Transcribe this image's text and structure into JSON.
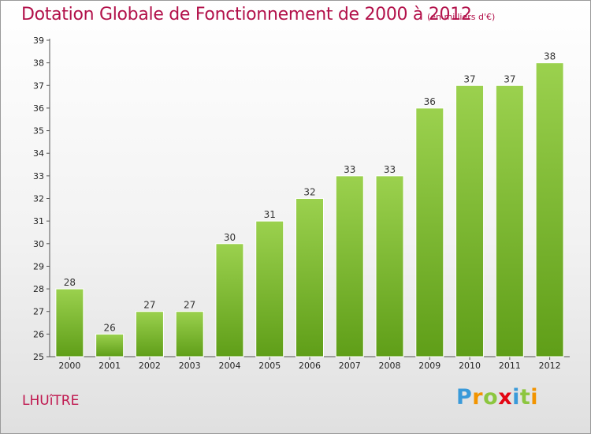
{
  "header": {
    "title": "Dotation Globale de Fonctionnement de 2000 à 2012",
    "unit": "(en milliers d'€)"
  },
  "footer": {
    "commune": "LHUîTRE",
    "brand_letters": [
      "P",
      "r",
      "o",
      "x",
      "i",
      "t",
      "i"
    ],
    "brand_colors": [
      "#3a9ad9",
      "#f29400",
      "#8cc63f",
      "#e30613",
      "#3a9ad9",
      "#8cc63f",
      "#f29400"
    ]
  },
  "colors": {
    "bar_top": "#9bd14e",
    "bar_bottom": "#5f9e18",
    "title": "#b2114a"
  },
  "chart_data": {
    "type": "bar",
    "categories": [
      "2000",
      "2001",
      "2002",
      "2003",
      "2004",
      "2005",
      "2006",
      "2007",
      "2008",
      "2009",
      "2010",
      "2011",
      "2012"
    ],
    "values": [
      28,
      26,
      27,
      27,
      30,
      31,
      32,
      33,
      33,
      36,
      37,
      37,
      38
    ],
    "ylim": [
      25,
      39
    ],
    "yticks": [
      25,
      26,
      27,
      28,
      29,
      30,
      31,
      32,
      33,
      34,
      35,
      36,
      37,
      38,
      39
    ],
    "grid": false,
    "legend": "none"
  }
}
